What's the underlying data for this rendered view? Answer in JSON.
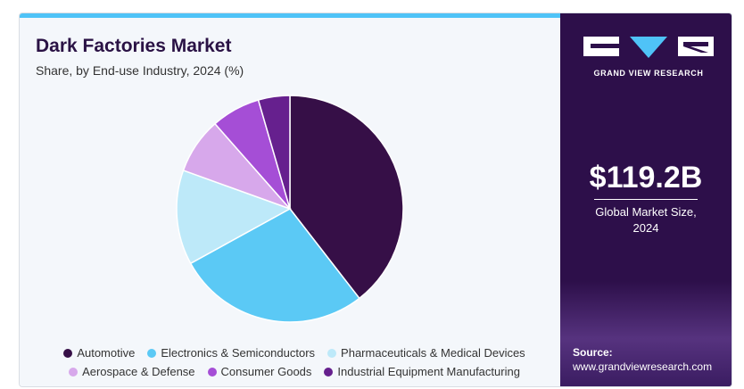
{
  "header": {
    "title": "Dark Factories Market",
    "subtitle": "Share, by End-use Industry, 2024 (%)"
  },
  "chart_data": {
    "type": "pie",
    "title": "Dark Factories Market",
    "subtitle": "Share, by End-use Industry, 2024 (%)",
    "start_angle_deg": 0,
    "direction": "clockwise",
    "slices": [
      {
        "name": "Automotive",
        "value": 39.5,
        "color": "#360f47"
      },
      {
        "name": "Electronics & Semiconductors",
        "value": 27.5,
        "color": "#5bc9f5"
      },
      {
        "name": "Pharmaceuticals & Medical Devices",
        "value": 13.5,
        "color": "#bde9f9"
      },
      {
        "name": "Aerospace & Defense",
        "value": 8.0,
        "color": "#d7a8eb"
      },
      {
        "name": "Consumer Goods",
        "value": 7.0,
        "color": "#a54ed6"
      },
      {
        "name": "Industrial Equipment Manufacturing",
        "value": 4.5,
        "color": "#66208e"
      }
    ],
    "legend_placement": "bottom"
  },
  "legend": {
    "rows": [
      [
        0,
        1,
        2
      ],
      [
        3,
        4,
        5
      ]
    ]
  },
  "brand": {
    "name": "GRAND VIEW RESEARCH",
    "color": "#2d0f4a"
  },
  "stat": {
    "value": "$119.2B",
    "label_line1": "Global Market Size,",
    "label_line2": "2024"
  },
  "source": {
    "label": "Source:",
    "url": "www.grandviewresearch.com"
  }
}
